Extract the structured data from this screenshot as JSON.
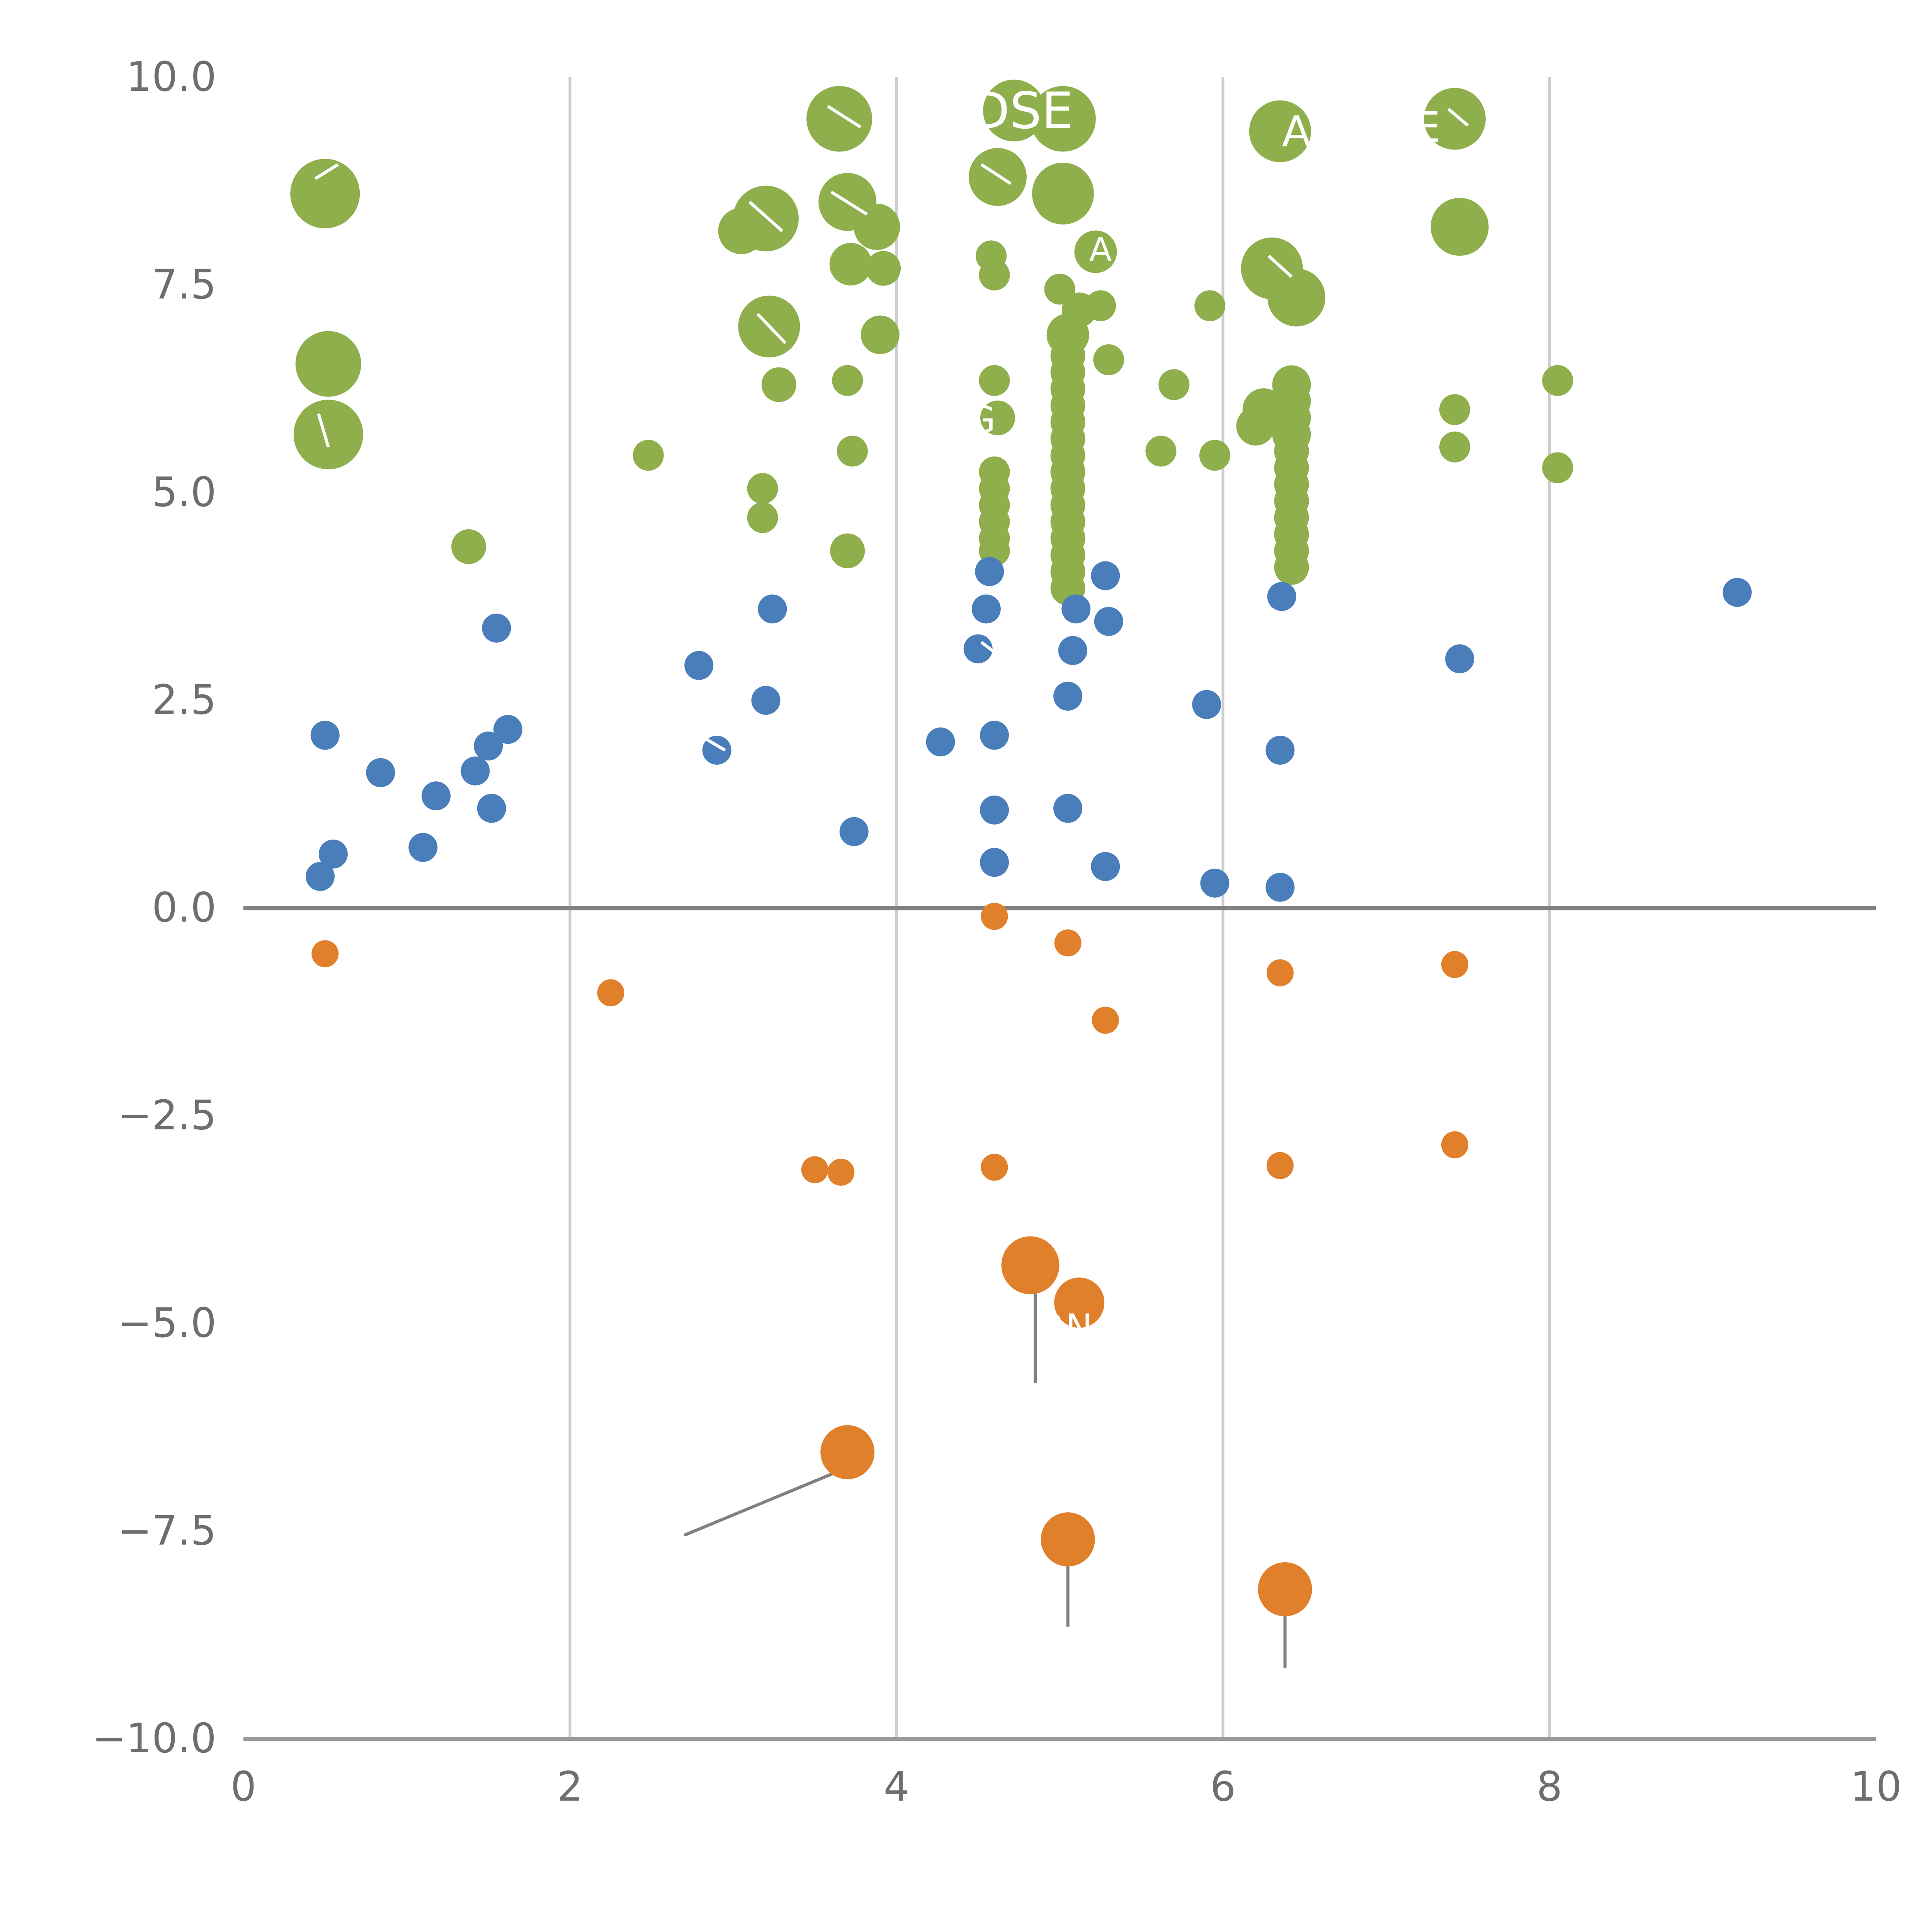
{
  "page": {
    "background": "#ffffff"
  },
  "chart_data": {
    "type": "scatter",
    "title": "",
    "xlabel": "",
    "ylabel": "",
    "xlim": [
      0,
      10
    ],
    "ylim": [
      -10,
      10
    ],
    "grid": {
      "vertical_lines": [
        2,
        4,
        6,
        8
      ],
      "color": "#cccccc"
    },
    "zero_line": {
      "y": 0,
      "color": "#808080"
    },
    "axis": {
      "line_color": "#999999",
      "tick_label_color": "#6e6e6e"
    },
    "x_ticks": [
      {
        "value": 0,
        "label": "0"
      },
      {
        "value": 2,
        "label": "2"
      },
      {
        "value": 4,
        "label": "4"
      },
      {
        "value": 6,
        "label": "6"
      },
      {
        "value": 8,
        "label": "8"
      },
      {
        "value": 10,
        "label": "10"
      }
    ],
    "y_ticks": [
      {
        "value": -10,
        "label": "−10.0"
      },
      {
        "value": -7.5,
        "label": "−7.5"
      },
      {
        "value": -5,
        "label": "−5.0"
      },
      {
        "value": -2.5,
        "label": "−2.5"
      },
      {
        "value": 0,
        "label": "0.0"
      },
      {
        "value": 2.5,
        "label": "2.5"
      },
      {
        "value": 5,
        "label": "5.0"
      },
      {
        "value": 7.5,
        "label": "7.5"
      },
      {
        "value": 10,
        "label": "10.0"
      }
    ],
    "series": [
      {
        "name": "green-bubbles",
        "color": "#8FAE4C",
        "points": [
          {
            "x": 0.5,
            "y": 8.6,
            "r": 18
          },
          {
            "x": 0.52,
            "y": 6.55,
            "r": 17
          },
          {
            "x": 0.52,
            "y": 5.7,
            "r": 18
          },
          {
            "x": 1.38,
            "y": 4.35,
            "r": 9
          },
          {
            "x": 2.48,
            "y": 5.45,
            "r": 8
          },
          {
            "x": 3.05,
            "y": 8.15,
            "r": 12
          },
          {
            "x": 3.2,
            "y": 8.3,
            "r": 17
          },
          {
            "x": 3.22,
            "y": 7.0,
            "r": 16
          },
          {
            "x": 3.28,
            "y": 6.3,
            "r": 9
          },
          {
            "x": 3.18,
            "y": 5.05,
            "r": 8
          },
          {
            "x": 3.18,
            "y": 4.7,
            "r": 8
          },
          {
            "x": 3.65,
            "y": 9.5,
            "r": 17
          },
          {
            "x": 3.7,
            "y": 8.5,
            "r": 15
          },
          {
            "x": 3.88,
            "y": 8.2,
            "r": 12
          },
          {
            "x": 3.72,
            "y": 7.75,
            "r": 11
          },
          {
            "x": 3.92,
            "y": 7.7,
            "r": 9
          },
          {
            "x": 3.9,
            "y": 6.9,
            "r": 10
          },
          {
            "x": 3.7,
            "y": 6.35,
            "r": 8
          },
          {
            "x": 3.73,
            "y": 5.5,
            "r": 8
          },
          {
            "x": 3.7,
            "y": 4.3,
            "r": 9
          },
          {
            "x": 4.62,
            "y": 8.8,
            "r": 15
          },
          {
            "x": 4.72,
            "y": 9.6,
            "r": 16
          },
          {
            "x": 4.58,
            "y": 7.85,
            "r": 8
          },
          {
            "x": 4.6,
            "y": 7.62,
            "r": 8
          },
          {
            "x": 4.6,
            "y": 6.35,
            "r": 8
          },
          {
            "x": 4.62,
            "y": 5.9,
            "r": 9
          },
          {
            "x": 4.6,
            "y": 5.25,
            "r": 8
          },
          {
            "x": 4.6,
            "y": 5.05,
            "r": 8
          },
          {
            "x": 4.6,
            "y": 4.85,
            "r": 8
          },
          {
            "x": 4.6,
            "y": 4.65,
            "r": 8
          },
          {
            "x": 4.6,
            "y": 4.45,
            "r": 8
          },
          {
            "x": 4.6,
            "y": 4.3,
            "r": 8
          },
          {
            "x": 5.02,
            "y": 9.5,
            "r": 17
          },
          {
            "x": 5.02,
            "y": 8.6,
            "r": 16
          },
          {
            "x": 5.22,
            "y": 7.9,
            "r": 11
          },
          {
            "x": 5.0,
            "y": 7.45,
            "r": 8
          },
          {
            "x": 5.12,
            "y": 7.2,
            "r": 9
          },
          {
            "x": 5.25,
            "y": 7.25,
            "r": 8
          },
          {
            "x": 5.05,
            "y": 6.9,
            "r": 11
          },
          {
            "x": 5.05,
            "y": 6.65,
            "r": 9
          },
          {
            "x": 5.05,
            "y": 6.45,
            "r": 9
          },
          {
            "x": 5.3,
            "y": 6.6,
            "r": 8
          },
          {
            "x": 5.05,
            "y": 6.25,
            "r": 9
          },
          {
            "x": 5.05,
            "y": 6.05,
            "r": 9
          },
          {
            "x": 5.05,
            "y": 5.85,
            "r": 9
          },
          {
            "x": 5.05,
            "y": 5.65,
            "r": 9
          },
          {
            "x": 5.05,
            "y": 5.45,
            "r": 9
          },
          {
            "x": 5.05,
            "y": 5.25,
            "r": 9
          },
          {
            "x": 5.05,
            "y": 5.05,
            "r": 9
          },
          {
            "x": 5.05,
            "y": 4.85,
            "r": 9
          },
          {
            "x": 5.05,
            "y": 4.65,
            "r": 9
          },
          {
            "x": 5.05,
            "y": 4.45,
            "r": 9
          },
          {
            "x": 5.05,
            "y": 4.25,
            "r": 9
          },
          {
            "x": 5.05,
            "y": 4.05,
            "r": 9
          },
          {
            "x": 5.05,
            "y": 3.85,
            "r": 9
          },
          {
            "x": 5.7,
            "y": 6.3,
            "r": 8
          },
          {
            "x": 5.62,
            "y": 5.5,
            "r": 8
          },
          {
            "x": 5.92,
            "y": 7.25,
            "r": 8
          },
          {
            "x": 5.95,
            "y": 5.45,
            "r": 8
          },
          {
            "x": 6.35,
            "y": 9.35,
            "r": 16
          },
          {
            "x": 6.3,
            "y": 7.7,
            "r": 16
          },
          {
            "x": 6.45,
            "y": 7.35,
            "r": 15
          },
          {
            "x": 6.25,
            "y": 6.0,
            "r": 11
          },
          {
            "x": 6.2,
            "y": 5.8,
            "r": 10
          },
          {
            "x": 6.42,
            "y": 6.3,
            "r": 10
          },
          {
            "x": 6.42,
            "y": 6.1,
            "r": 10
          },
          {
            "x": 6.42,
            "y": 5.9,
            "r": 10
          },
          {
            "x": 6.42,
            "y": 5.7,
            "r": 10
          },
          {
            "x": 6.42,
            "y": 5.5,
            "r": 9
          },
          {
            "x": 6.42,
            "y": 5.3,
            "r": 9
          },
          {
            "x": 6.42,
            "y": 5.1,
            "r": 9
          },
          {
            "x": 6.42,
            "y": 4.9,
            "r": 9
          },
          {
            "x": 6.42,
            "y": 4.7,
            "r": 9
          },
          {
            "x": 6.42,
            "y": 4.5,
            "r": 9
          },
          {
            "x": 6.42,
            "y": 4.3,
            "r": 9
          },
          {
            "x": 6.42,
            "y": 4.1,
            "r": 9
          },
          {
            "x": 7.42,
            "y": 9.5,
            "r": 16
          },
          {
            "x": 7.45,
            "y": 8.2,
            "r": 15
          },
          {
            "x": 7.42,
            "y": 6.0,
            "r": 8
          },
          {
            "x": 7.42,
            "y": 5.55,
            "r": 8
          },
          {
            "x": 8.05,
            "y": 6.35,
            "r": 8
          },
          {
            "x": 8.05,
            "y": 5.3,
            "r": 8
          }
        ]
      },
      {
        "name": "blue-dots",
        "color": "#4A7EBB",
        "r": 7.5,
        "points": [
          {
            "x": 0.5,
            "y": 2.08
          },
          {
            "x": 0.55,
            "y": 0.65
          },
          {
            "x": 0.47,
            "y": 0.38
          },
          {
            "x": 0.84,
            "y": 1.63
          },
          {
            "x": 1.1,
            "y": 0.73
          },
          {
            "x": 1.18,
            "y": 1.35
          },
          {
            "x": 1.42,
            "y": 1.65
          },
          {
            "x": 1.5,
            "y": 1.95
          },
          {
            "x": 1.55,
            "y": 3.37
          },
          {
            "x": 1.62,
            "y": 2.15
          },
          {
            "x": 1.52,
            "y": 1.2
          },
          {
            "x": 2.79,
            "y": 2.92
          },
          {
            "x": 2.9,
            "y": 1.9
          },
          {
            "x": 3.2,
            "y": 2.5
          },
          {
            "x": 3.24,
            "y": 3.6
          },
          {
            "x": 3.74,
            "y": 0.92
          },
          {
            "x": 4.27,
            "y": 2.0
          },
          {
            "x": 4.5,
            "y": 3.12
          },
          {
            "x": 4.55,
            "y": 3.6
          },
          {
            "x": 4.57,
            "y": 4.05
          },
          {
            "x": 4.6,
            "y": 2.08
          },
          {
            "x": 4.6,
            "y": 1.18
          },
          {
            "x": 4.6,
            "y": 0.55
          },
          {
            "x": 5.05,
            "y": 1.2
          },
          {
            "x": 5.05,
            "y": 2.55
          },
          {
            "x": 5.08,
            "y": 3.1
          },
          {
            "x": 5.1,
            "y": 3.6
          },
          {
            "x": 5.28,
            "y": 4.0
          },
          {
            "x": 5.3,
            "y": 3.45
          },
          {
            "x": 5.28,
            "y": 0.5
          },
          {
            "x": 5.9,
            "y": 2.45
          },
          {
            "x": 5.95,
            "y": 0.3
          },
          {
            "x": 6.35,
            "y": 1.9
          },
          {
            "x": 6.35,
            "y": 0.25
          },
          {
            "x": 6.36,
            "y": 3.75
          },
          {
            "x": 7.45,
            "y": 3.0
          },
          {
            "x": 9.15,
            "y": 3.8
          }
        ]
      },
      {
        "name": "orange-bubbles",
        "color": "#E0802B",
        "points": [
          {
            "x": 0.5,
            "y": -0.55,
            "r": 7
          },
          {
            "x": 2.25,
            "y": -1.02,
            "r": 7
          },
          {
            "x": 3.5,
            "y": -3.15,
            "r": 7
          },
          {
            "x": 3.66,
            "y": -3.18,
            "r": 7
          },
          {
            "x": 4.6,
            "y": -0.1,
            "r": 7
          },
          {
            "x": 4.6,
            "y": -3.12,
            "r": 7
          },
          {
            "x": 5.05,
            "y": -0.42,
            "r": 7
          },
          {
            "x": 5.28,
            "y": -1.35,
            "r": 7
          },
          {
            "x": 4.82,
            "y": -4.3,
            "r": 15
          },
          {
            "x": 5.12,
            "y": -4.75,
            "r": 13
          },
          {
            "x": 3.7,
            "y": -6.55,
            "r": 14
          },
          {
            "x": 5.05,
            "y": -7.6,
            "r": 14
          },
          {
            "x": 6.38,
            "y": -8.2,
            "r": 14
          },
          {
            "x": 6.35,
            "y": -0.78,
            "r": 7
          },
          {
            "x": 6.35,
            "y": -3.1,
            "r": 7
          },
          {
            "x": 7.42,
            "y": -0.68,
            "r": 7
          },
          {
            "x": 7.42,
            "y": -2.85,
            "r": 7
          }
        ]
      }
    ],
    "labels": [
      {
        "text": "DSE",
        "x": 4.77,
        "y": 9.6,
        "size": 26,
        "color": "#ffffff"
      },
      {
        "text": "A",
        "x": 6.45,
        "y": 9.35,
        "size": 22,
        "color": "#ffffff"
      },
      {
        "text": "E",
        "x": 7.25,
        "y": 9.4,
        "size": 22,
        "color": "#ffffff"
      },
      {
        "text": "A",
        "x": 5.25,
        "y": 7.93,
        "size": 17,
        "color": "#ffffff"
      },
      {
        "text": "G",
        "x": 4.52,
        "y": 5.88,
        "size": 19,
        "color": "#ffffff"
      },
      {
        "text": "RN",
        "x": 5.04,
        "y": -5.05,
        "size": 19,
        "color": "#ffffff"
      }
    ],
    "leader_lines": [
      {
        "x1": 3.62,
        "y1": -6.8,
        "x2": 2.7,
        "y2": -7.55
      },
      {
        "x1": 4.85,
        "y1": -4.5,
        "x2": 4.85,
        "y2": -5.72
      },
      {
        "x1": 5.05,
        "y1": -7.75,
        "x2": 5.05,
        "y2": -8.65
      },
      {
        "x1": 6.38,
        "y1": -8.4,
        "x2": 6.38,
        "y2": -9.15
      }
    ],
    "leader_line_color": "#808080",
    "white_lines": [
      {
        "x1": 0.44,
        "y1": 8.78,
        "x2": 0.58,
        "y2": 8.95
      },
      {
        "x1": 0.46,
        "y1": 5.95,
        "x2": 0.52,
        "y2": 5.55
      },
      {
        "x1": 3.1,
        "y1": 8.5,
        "x2": 3.3,
        "y2": 8.15
      },
      {
        "x1": 3.15,
        "y1": 7.15,
        "x2": 3.32,
        "y2": 6.8
      },
      {
        "x1": 3.58,
        "y1": 9.65,
        "x2": 3.78,
        "y2": 9.4
      },
      {
        "x1": 3.6,
        "y1": 8.62,
        "x2": 3.82,
        "y2": 8.35
      },
      {
        "x1": 4.52,
        "y1": 8.95,
        "x2": 4.7,
        "y2": 8.72
      },
      {
        "x1": 6.28,
        "y1": 7.85,
        "x2": 6.42,
        "y2": 7.6
      },
      {
        "x1": 7.38,
        "y1": 9.62,
        "x2": 7.5,
        "y2": 9.42
      },
      {
        "x1": 2.82,
        "y1": 2.05,
        "x2": 2.95,
        "y2": 1.9
      },
      {
        "x1": 4.52,
        "y1": 3.2,
        "x2": 4.62,
        "y2": 3.05
      }
    ],
    "white_line_color": "#ffffff"
  }
}
